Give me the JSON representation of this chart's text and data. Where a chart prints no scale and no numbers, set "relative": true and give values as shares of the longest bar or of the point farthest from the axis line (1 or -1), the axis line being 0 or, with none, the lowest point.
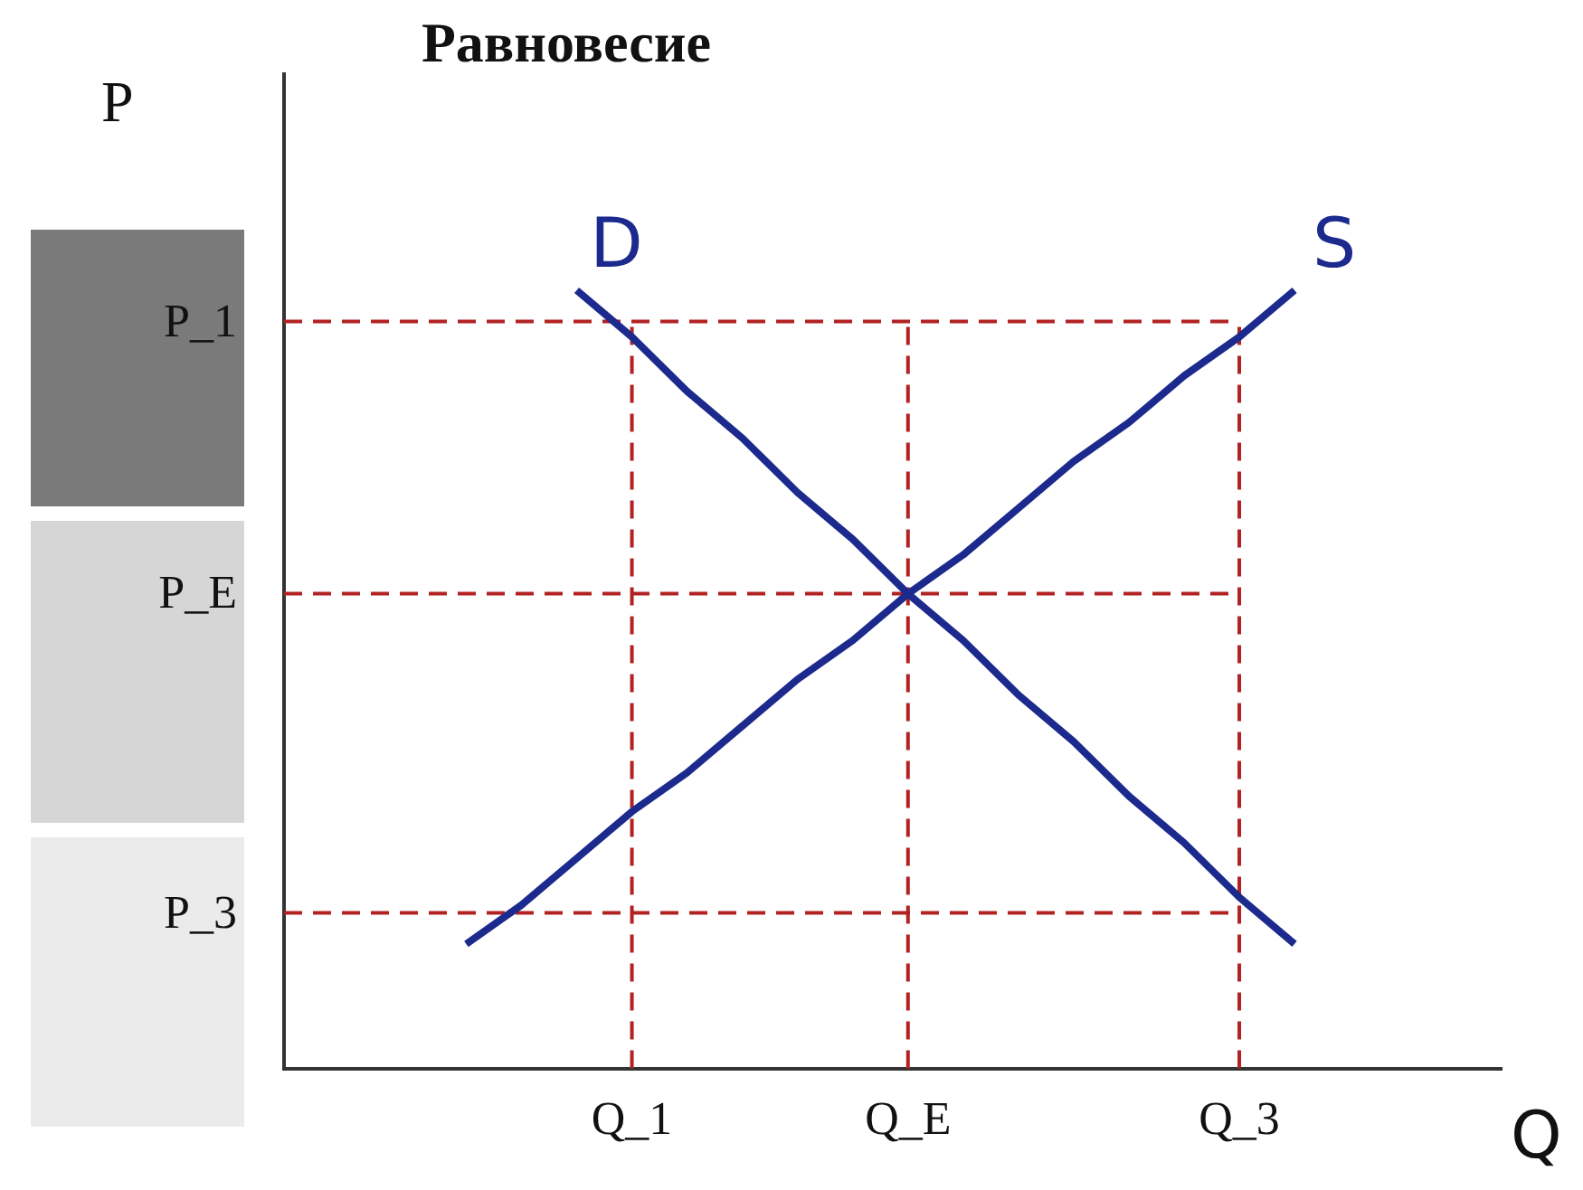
{
  "chart_data": {
    "type": "line",
    "title": "Равновесие",
    "xlabel": "Q",
    "annotations": [
      "P"
    ],
    "relative": true,
    "categories": [
      null,
      null,
      null,
      "Q_1",
      null,
      null,
      null,
      null,
      "Q_E",
      null,
      null,
      null,
      null,
      null,
      "Q_3",
      null
    ],
    "series": [
      {
        "name": "D",
        "color": "#1c2a8e",
        "values": [
          null,
          null,
          1,
          0.94,
          0.87,
          0.81,
          0.74,
          0.68,
          0.61,
          0.55,
          0.48,
          0.42,
          0.35,
          0.29,
          0.22,
          0.16
        ]
      },
      {
        "name": "S",
        "color": "#1c2a8e",
        "values": [
          0.16,
          0.21,
          0.27,
          0.33,
          0.38,
          0.44,
          0.5,
          0.55,
          0.61,
          0.66,
          0.72,
          0.78,
          0.83,
          0.89,
          0.94,
          1
        ]
      }
    ],
    "ref_lines": [
      {
        "axis": "y",
        "value": 0.96,
        "label": "P_1",
        "color": "#b22222",
        "line_style": "dashed"
      },
      {
        "axis": "y",
        "value": 0.61,
        "label": "P_E",
        "color": "#b22222",
        "line_style": "dashed"
      },
      {
        "axis": "y",
        "value": 0.2,
        "label": "P_3",
        "color": "#b22222",
        "line_style": "dashed"
      },
      {
        "axis": "x",
        "value": "Q_1",
        "color": "#b22222",
        "line_style": "dashed"
      },
      {
        "axis": "x",
        "value": "Q_E",
        "color": "#b22222",
        "line_style": "dashed"
      },
      {
        "axis": "x",
        "value": "Q_3",
        "color": "#b22222",
        "line_style": "dashed"
      }
    ],
    "grid": false,
    "legend": false,
    "marker": "none",
    "line_style": "solid"
  }
}
